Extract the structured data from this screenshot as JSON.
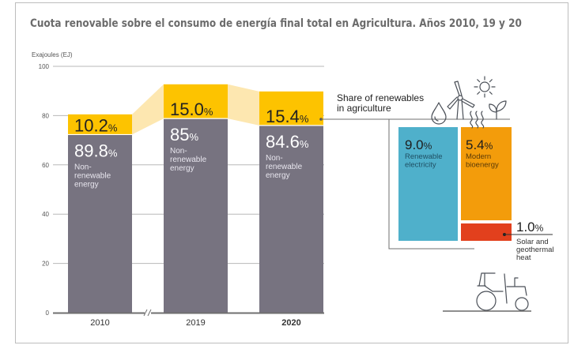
{
  "title": "Cuota renovable sobre el consumo de energía final total en Agricultura. Años 2010, 19 y 20",
  "colors": {
    "non_renewable": "#777380",
    "renewable": "#fdc300",
    "renewable_band": "#fde7b0",
    "renewable_electricity": "#4fb0cb",
    "modern_bioenergy": "#f39c0b",
    "solar_geothermal": "#e2401d",
    "gridline": "#b8b8b8",
    "axis": "#6f6f6f",
    "icon_stroke": "#4a4f57"
  },
  "chart_data": {
    "type": "bar",
    "stacked": true,
    "title": "Cuota renovable sobre el consumo de energía final total en Agricultura. Años 2010, 19 y 20",
    "ylabel": "Exajoules (EJ)",
    "xlabel": "",
    "ylim": [
      0,
      100
    ],
    "yticks": [
      0,
      20,
      40,
      60,
      80,
      100
    ],
    "grid": true,
    "axis_break_between": [
      "2010",
      "2019"
    ],
    "categories": [
      "2010",
      "2019",
      "2020"
    ],
    "highlight_category": "2020",
    "totals_ej": [
      80.5,
      92.7,
      89.8
    ],
    "series": [
      {
        "name": "Non-renewable energy",
        "share_pct": [
          89.8,
          85,
          84.6
        ],
        "share_labels": [
          "89.8",
          "85",
          "84.6"
        ],
        "values_ej": [
          72.3,
          78.8,
          76.0
        ],
        "description": [
          "Non-",
          "renewable",
          "energy"
        ]
      },
      {
        "name": "Renewable energy",
        "share_pct": [
          10.2,
          15.0,
          15.4
        ],
        "share_labels": [
          "10.2",
          "15.0",
          "15.4"
        ],
        "values_ej": [
          8.2,
          13.9,
          13.8
        ]
      }
    ],
    "breakdown": {
      "title_lines": [
        "Share of renewables",
        "in agriculture"
      ],
      "year": "2020",
      "items": [
        {
          "name": "Renewable electricity",
          "pct": 9.0,
          "pct_label": "9.0",
          "lines": [
            "Renewable",
            "electricity"
          ]
        },
        {
          "name": "Modern bioenergy",
          "pct": 5.4,
          "pct_label": "5.4",
          "lines": [
            "Modern",
            "bioenergy"
          ]
        },
        {
          "name": "Solar and geothermal heat",
          "pct": 1.0,
          "pct_label": "1.0",
          "lines": [
            "Solar and",
            "geothermal",
            "heat"
          ]
        }
      ]
    },
    "percent_sign": "%",
    "icons": [
      "water-drop-icon",
      "wind-turbine-icon",
      "sun-icon",
      "heat-waves-icon",
      "leaf-sprout-icon",
      "tractor-icon"
    ]
  }
}
